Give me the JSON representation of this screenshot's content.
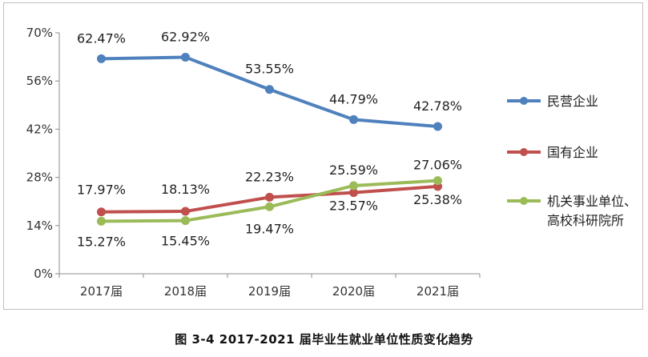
{
  "caption": "图 3-4   2017-2021 届毕业生就业单位性质变化趋势",
  "chart_data": {
    "type": "line",
    "categories": [
      "2017届",
      "2018届",
      "2019届",
      "2020届",
      "2021届"
    ],
    "ylim": [
      0,
      70
    ],
    "yticks": [
      "0%",
      "14%",
      "28%",
      "42%",
      "56%",
      "70%"
    ],
    "ytick_values": [
      0,
      14,
      28,
      42,
      56,
      70
    ],
    "legend_position": "right",
    "grid": false,
    "series": [
      {
        "name": "民营企业",
        "color": "#4f81bd",
        "values": [
          62.47,
          62.92,
          53.55,
          44.79,
          42.78
        ],
        "labels": [
          "62.47%",
          "62.92%",
          "53.55%",
          "44.79%",
          "42.78%"
        ]
      },
      {
        "name": "国有企业",
        "color": "#c0504d",
        "values": [
          17.97,
          18.13,
          22.23,
          23.57,
          25.38
        ],
        "labels": [
          "17.97%",
          "18.13%",
          "22.23%",
          "23.57%",
          "25.38%"
        ]
      },
      {
        "name": "机关事业单位、高校科研院所",
        "name_lines": [
          "机关事业单位、",
          "高校科研院所"
        ],
        "color": "#9bbb59",
        "values": [
          15.27,
          15.45,
          19.47,
          25.59,
          27.06
        ],
        "labels": [
          "15.27%",
          "15.45%",
          "19.47%",
          "25.59%",
          "27.06%"
        ]
      }
    ]
  }
}
